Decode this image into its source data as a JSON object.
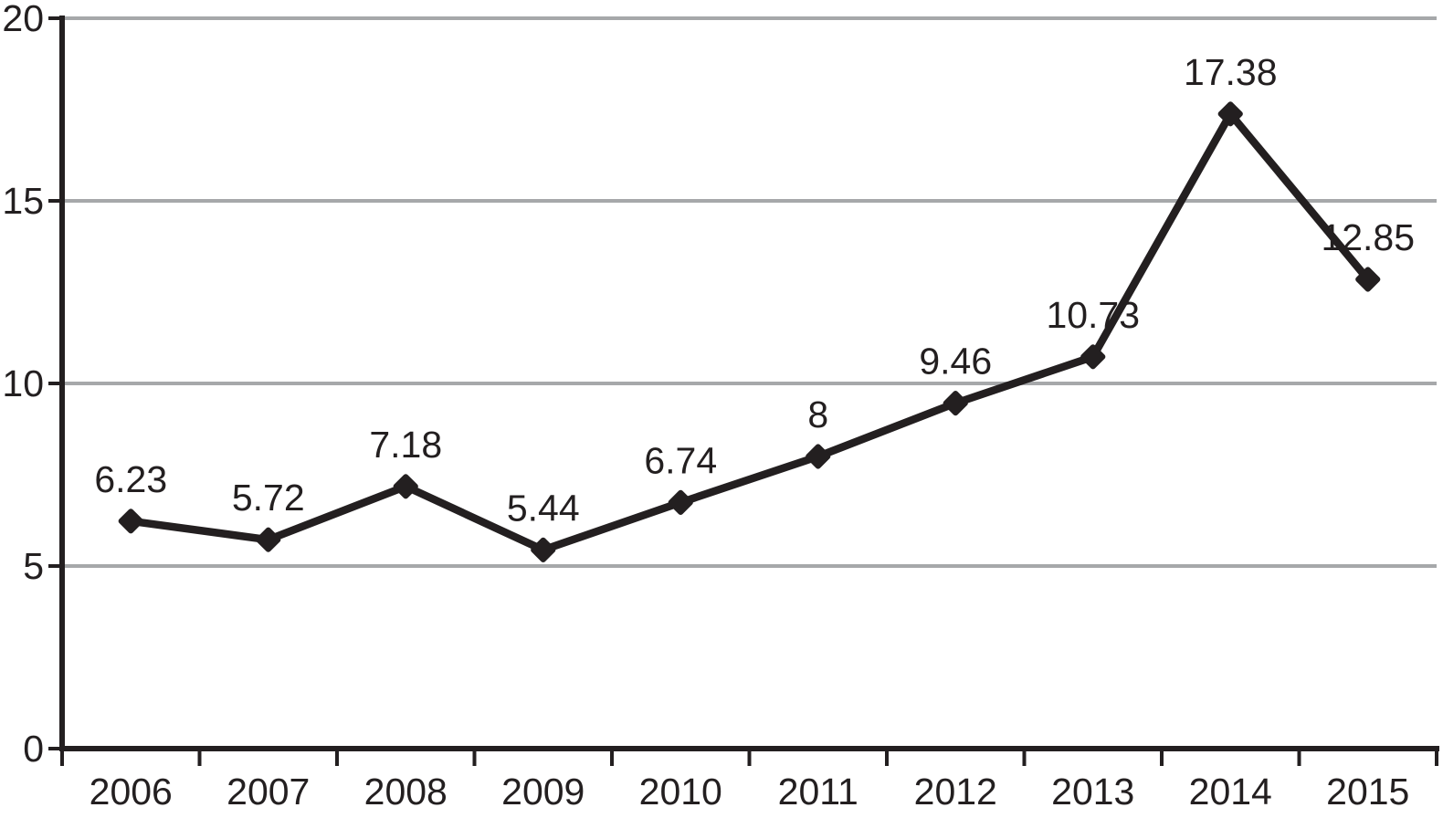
{
  "chart_data": {
    "type": "line",
    "title": "",
    "xlabel": "",
    "ylabel": "",
    "categories": [
      "2006",
      "2007",
      "2008",
      "2009",
      "2010",
      "2011",
      "2012",
      "2013",
      "2014",
      "2015"
    ],
    "series": [
      {
        "name": "series-1",
        "values": [
          6.23,
          5.72,
          7.18,
          5.44,
          6.74,
          8,
          9.46,
          10.73,
          17.38,
          12.85
        ],
        "data_labels": [
          "6.23",
          "5.72",
          "7.18",
          "5.44",
          "6.74",
          "8",
          "9.46",
          "10.73",
          "17.38",
          "12.85"
        ]
      }
    ],
    "ylim": [
      0,
      20
    ],
    "yticks": [
      0,
      5,
      10,
      15,
      20
    ],
    "ytick_labels": [
      "0",
      "5",
      "10",
      "15",
      "20"
    ],
    "grid": true,
    "legend": false,
    "legend_position": "none",
    "marker_shape": "diamond",
    "colors": {
      "line": "#231f20",
      "marker": "#231f20",
      "axis": "#231f20",
      "text": "#231f20",
      "gridline": "#a6a8aa",
      "background": "#ffffff"
    }
  }
}
